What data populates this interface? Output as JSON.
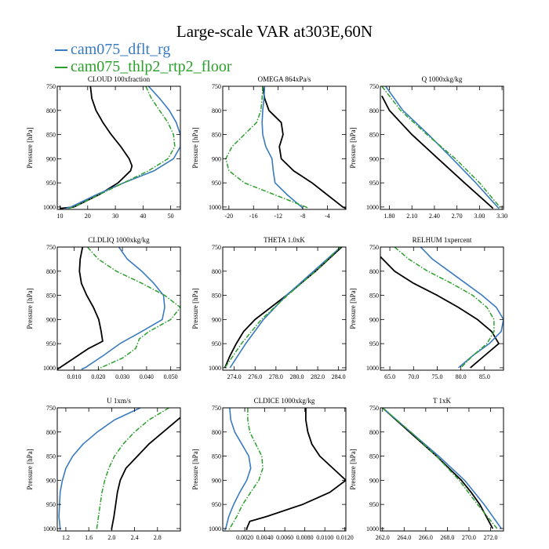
{
  "figure": {
    "title": "Large-scale VAR at303E,60N",
    "legend": [
      {
        "label": "cam075_dflt_rg",
        "color": "#3a7bbf",
        "dash": "solid"
      },
      {
        "label": "cam075_thlp2_rtp2_floor",
        "color": "#2ca02c",
        "dash": "dash-dot"
      }
    ],
    "black_series_color": "#000000"
  },
  "chart_data": [
    {
      "type": "line",
      "title": "CLOUD  100xfraction",
      "ylabel": "Pressure [hPa]",
      "ylim": [
        1005,
        750
      ],
      "xlim": [
        9,
        53.5
      ],
      "xticks": [
        10,
        20,
        30,
        40,
        50
      ],
      "xtick_labels": [
        "10",
        "20",
        "30",
        "40",
        "50"
      ],
      "yticks": [
        750,
        800,
        850,
        900,
        950,
        1000
      ],
      "ytick_labels": [
        "750",
        "800",
        "850",
        "900",
        "950",
        "1000"
      ],
      "series": [
        {
          "color": "#000000",
          "pressure": [
            750,
            775,
            800,
            825,
            850,
            875,
            900,
            915,
            925,
            950,
            975,
            1000,
            1003
          ],
          "values": [
            21,
            21.5,
            23,
            25.5,
            28.5,
            32,
            35,
            36,
            35.5,
            31,
            24,
            15,
            10
          ]
        },
        {
          "color": "#3a7bbf",
          "pressure": [
            750,
            775,
            800,
            825,
            850,
            875,
            900,
            925,
            950,
            975,
            1000,
            1003
          ],
          "values": [
            42,
            46,
            49.5,
            52,
            53.5,
            53.5,
            51,
            44,
            33,
            23,
            14,
            12
          ]
        },
        {
          "color": "#2ca02c",
          "pressure": [
            750,
            775,
            800,
            825,
            850,
            875,
            900,
            925,
            950,
            975,
            1000,
            1003
          ],
          "values": [
            41,
            43,
            46,
            49,
            51,
            51.5,
            49,
            42,
            33,
            24,
            15,
            13
          ]
        }
      ]
    },
    {
      "type": "line",
      "title": "OMEGA  864xPa/s",
      "ylabel": "Pressure [hPa]",
      "ylim": [
        1005,
        750
      ],
      "xlim": [
        -21,
        -1
      ],
      "xticks": [
        -20,
        -16,
        -12,
        -8,
        -4
      ],
      "xtick_labels": [
        "-20",
        "-16",
        "-12",
        "-8",
        "-4"
      ],
      "yticks": [
        750,
        800,
        850,
        900,
        950,
        1000
      ],
      "ytick_labels": [
        "750",
        "800",
        "850",
        "900",
        "950",
        "1000"
      ],
      "series": [
        {
          "color": "#000000",
          "pressure": [
            750,
            775,
            800,
            825,
            850,
            875,
            900,
            925,
            950,
            975,
            1000,
            1003
          ],
          "values": [
            -14.5,
            -14.2,
            -13.5,
            -11.5,
            -11.2,
            -11.8,
            -11.5,
            -9.5,
            -6.5,
            -4,
            -1.5,
            -1
          ]
        },
        {
          "color": "#3a7bbf",
          "pressure": [
            750,
            775,
            800,
            825,
            850,
            875,
            900,
            925,
            950,
            975,
            1000,
            1003
          ],
          "values": [
            -14.2,
            -14.3,
            -14.5,
            -14.6,
            -14.5,
            -14.0,
            -13.0,
            -12.8,
            -12.5,
            -10.5,
            -8.2,
            -8
          ]
        },
        {
          "color": "#2ca02c",
          "pressure": [
            750,
            775,
            800,
            825,
            850,
            875,
            900,
            925,
            950,
            975,
            1000,
            1003
          ],
          "values": [
            -14.5,
            -14.6,
            -14.8,
            -15.5,
            -17.5,
            -19.5,
            -20.5,
            -20.0,
            -17.5,
            -12.5,
            -7.5,
            -7
          ]
        }
      ]
    },
    {
      "type": "line",
      "title": "Q  1000xkg/kg",
      "ylabel": "Pressure [hPa]",
      "ylim": [
        1005,
        750
      ],
      "xlim": [
        1.68,
        3.32
      ],
      "xticks": [
        1.8,
        2.1,
        2.4,
        2.7,
        3.0,
        3.3
      ],
      "xtick_labels": [
        "1.80",
        "2.10",
        "2.40",
        "2.70",
        "3.00",
        "3.30"
      ],
      "yticks": [
        750,
        800,
        850,
        900,
        950,
        1000
      ],
      "ytick_labels": [
        "750",
        "800",
        "850",
        "900",
        "950",
        "1000"
      ],
      "series": [
        {
          "color": "#000000",
          "pressure": [
            770,
            800,
            850,
            900,
            950,
            1000,
            1003
          ],
          "values": [
            1.7,
            1.8,
            2.1,
            2.45,
            2.8,
            3.16,
            3.18
          ]
        },
        {
          "color": "#3a7bbf",
          "pressure": [
            750,
            800,
            850,
            900,
            950,
            1000,
            1003
          ],
          "values": [
            1.75,
            1.98,
            2.32,
            2.64,
            2.95,
            3.24,
            3.26
          ]
        },
        {
          "color": "#2ca02c",
          "pressure": [
            750,
            800,
            850,
            900,
            950,
            1000,
            1003
          ],
          "values": [
            1.7,
            1.95,
            2.3,
            2.68,
            3.0,
            3.27,
            3.29
          ]
        }
      ]
    },
    {
      "type": "line",
      "title": "CLDLIQ  1000xkg/kg",
      "ylabel": "Pressure [hPa]",
      "ylim": [
        1005,
        750
      ],
      "xlim": [
        0.003,
        0.054
      ],
      "xticks": [
        0.01,
        0.02,
        0.03,
        0.04,
        0.05
      ],
      "xtick_labels": [
        "0.010",
        "0.020",
        "0.030",
        "0.040",
        "0.050"
      ],
      "yticks": [
        750,
        800,
        850,
        900,
        950,
        1000
      ],
      "ytick_labels": [
        "750",
        "800",
        "850",
        "900",
        "950",
        "1000"
      ],
      "series": [
        {
          "color": "#000000",
          "pressure": [
            750,
            775,
            800,
            825,
            850,
            875,
            900,
            925,
            945,
            960,
            980,
            1000,
            1003
          ],
          "values": [
            0.0135,
            0.0125,
            0.0122,
            0.013,
            0.0152,
            0.018,
            0.0202,
            0.0212,
            0.0218,
            0.016,
            0.01,
            0.004,
            0.003
          ]
        },
        {
          "color": "#3a7bbf",
          "pressure": [
            750,
            775,
            800,
            825,
            850,
            875,
            900,
            925,
            950,
            975,
            1000,
            1003
          ],
          "values": [
            0.0285,
            0.032,
            0.038,
            0.043,
            0.047,
            0.0475,
            0.0465,
            0.038,
            0.029,
            0.022,
            0.0145,
            0.013
          ]
        },
        {
          "color": "#2ca02c",
          "pressure": [
            750,
            775,
            800,
            825,
            850,
            875,
            900,
            925,
            940,
            960,
            980,
            1000,
            1003
          ],
          "values": [
            0.0155,
            0.02,
            0.0275,
            0.038,
            0.0475,
            0.054,
            0.05,
            0.041,
            0.037,
            0.0355,
            0.03,
            0.021,
            0.02
          ]
        }
      ]
    },
    {
      "type": "line",
      "title": "THETA  1.0xK",
      "ylabel": "Pressure [hPa]",
      "ylim": [
        1005,
        750
      ],
      "xlim": [
        272.9,
        284.7
      ],
      "xticks": [
        274,
        276,
        278,
        280,
        282,
        284
      ],
      "xtick_labels": [
        "274.0",
        "276.0",
        "278.0",
        "280.0",
        "282.0",
        "284.0"
      ],
      "yticks": [
        750,
        800,
        850,
        900,
        950,
        1000
      ],
      "ytick_labels": [
        "750",
        "800",
        "850",
        "900",
        "950",
        "1000"
      ],
      "series": [
        {
          "color": "#000000",
          "pressure": [
            750,
            800,
            850,
            875,
            900,
            925,
            950,
            975,
            1000
          ],
          "values": [
            284.3,
            281.8,
            279.0,
            277.5,
            276.0,
            274.9,
            274.2,
            273.6,
            273.1
          ]
        },
        {
          "color": "#3a7bbf",
          "pressure": [
            750,
            800,
            850,
            900,
            950,
            1000
          ],
          "values": [
            284.2,
            281.6,
            279.0,
            276.8,
            275.1,
            273.6
          ]
        },
        {
          "color": "#2ca02c",
          "pressure": [
            750,
            800,
            850,
            900,
            950,
            1000
          ],
          "values": [
            284.2,
            281.8,
            279.1,
            276.6,
            274.7,
            273.1
          ]
        }
      ]
    },
    {
      "type": "line",
      "title": "RELHUM  1xpercent",
      "ylabel": "Pressure [hPa]",
      "ylim": [
        1005,
        750
      ],
      "xlim": [
        63,
        89
      ],
      "xticks": [
        65,
        70,
        75,
        80,
        85
      ],
      "xtick_labels": [
        "65.0",
        "70.0",
        "75.0",
        "80.0",
        "85.0"
      ],
      "yticks": [
        750,
        800,
        850,
        900,
        950,
        1000
      ],
      "ytick_labels": [
        "750",
        "800",
        "850",
        "900",
        "950",
        "1000"
      ],
      "series": [
        {
          "color": "#000000",
          "pressure": [
            770,
            800,
            825,
            850,
            875,
            900,
            925,
            950,
            975,
            1000
          ],
          "values": [
            63,
            66,
            70,
            75,
            79.5,
            83.5,
            86.5,
            88,
            85,
            82
          ]
        },
        {
          "color": "#3a7bbf",
          "pressure": [
            750,
            775,
            800,
            825,
            850,
            875,
            900,
            925,
            950,
            975,
            1000
          ],
          "values": [
            71.5,
            74,
            77.5,
            81,
            84.5,
            87.5,
            89,
            88.5,
            86,
            82.5,
            79.5
          ]
        },
        {
          "color": "#2ca02c",
          "pressure": [
            750,
            775,
            800,
            825,
            850,
            875,
            900,
            925,
            950,
            975,
            1000
          ],
          "values": [
            66,
            69,
            73,
            78,
            82.5,
            85.5,
            87,
            87,
            85.5,
            82.5,
            80
          ]
        }
      ]
    },
    {
      "type": "line",
      "title": "U  1xm/s",
      "ylabel": "Pressure [hPa]",
      "ylim": [
        1005,
        750
      ],
      "xlim": [
        1.05,
        3.2
      ],
      "xticks": [
        1.2,
        1.6,
        2.0,
        2.4,
        2.8
      ],
      "xtick_labels": [
        "1.2",
        "1.6",
        "2.0",
        "2.4",
        "2.8"
      ],
      "yticks": [
        750,
        800,
        850,
        900,
        950,
        1000
      ],
      "ytick_labels": [
        "750",
        "800",
        "850",
        "900",
        "950",
        "1000"
      ],
      "series": [
        {
          "color": "#000000",
          "pressure": [
            770,
            800,
            825,
            850,
            875,
            900,
            925,
            950,
            975,
            1000,
            1003
          ],
          "values": [
            3.2,
            2.9,
            2.65,
            2.45,
            2.25,
            2.15,
            2.1,
            2.07,
            2.04,
            2.0,
            2.0
          ]
        },
        {
          "color": "#3a7bbf",
          "pressure": [
            750,
            775,
            800,
            825,
            850,
            875,
            900,
            925,
            950,
            975,
            1000,
            1003
          ],
          "values": [
            2.5,
            2.05,
            1.75,
            1.5,
            1.32,
            1.2,
            1.14,
            1.1,
            1.09,
            1.08,
            1.1,
            1.1
          ]
        },
        {
          "color": "#2ca02c",
          "pressure": [
            750,
            775,
            800,
            825,
            850,
            875,
            900,
            925,
            950,
            975,
            1000,
            1003
          ],
          "values": [
            3.0,
            2.65,
            2.4,
            2.2,
            2.05,
            1.95,
            1.88,
            1.83,
            1.8,
            1.77,
            1.74,
            1.74
          ]
        }
      ]
    },
    {
      "type": "line",
      "title": "CLDICE  1000xkg/kg",
      "ylabel": "Pressure [hPa]",
      "ylim": [
        1005,
        750
      ],
      "xlim": [
        -0.0002,
        0.0121
      ],
      "xticks": [
        0.002,
        0.004,
        0.006,
        0.008,
        0.01,
        0.012
      ],
      "xtick_labels": [
        "0.0020",
        "0.0040",
        "0.0060",
        "0.0080",
        "0.0100",
        "0.0120"
      ],
      "yticks": [
        750,
        800,
        850,
        900,
        950,
        1000
      ],
      "ytick_labels": [
        "750",
        "800",
        "850",
        "900",
        "950",
        "1000"
      ],
      "series": [
        {
          "color": "#000000",
          "pressure": [
            750,
            775,
            800,
            825,
            850,
            875,
            900,
            925,
            950,
            975,
            985,
            1000,
            1003
          ],
          "values": [
            0.0081,
            0.0081,
            0.0083,
            0.0087,
            0.0095,
            0.0108,
            0.0121,
            0.0105,
            0.0078,
            0.0042,
            0.0025,
            0.0022,
            0.0022
          ]
        },
        {
          "color": "#3a7bbf",
          "pressure": [
            750,
            775,
            800,
            825,
            850,
            875,
            900,
            925,
            950,
            975,
            1000,
            1003
          ],
          "values": [
            0.0005,
            0.0006,
            0.001,
            0.0017,
            0.0024,
            0.0026,
            0.0022,
            0.0015,
            0.0009,
            0.0004,
            0.0001,
            0
          ]
        },
        {
          "color": "#2ca02c",
          "pressure": [
            750,
            775,
            800,
            825,
            850,
            875,
            900,
            925,
            950,
            975,
            1000,
            1003
          ],
          "values": [
            0.0023,
            0.0023,
            0.0025,
            0.0031,
            0.0037,
            0.0038,
            0.0034,
            0.0026,
            0.0018,
            0.0012,
            0.0005,
            0.0004
          ]
        }
      ]
    },
    {
      "type": "line",
      "title": "T  1xK",
      "ylabel": "Pressure [hPa]",
      "ylim": [
        1005,
        750
      ],
      "xlim": [
        261.8,
        273.2
      ],
      "xticks": [
        262,
        264,
        266,
        268,
        270,
        272
      ],
      "xtick_labels": [
        "262.0",
        "264.0",
        "266.0",
        "268.0",
        "270.0",
        "272.0"
      ],
      "yticks": [
        750,
        800,
        850,
        900,
        950,
        1000
      ],
      "ytick_labels": [
        "750",
        "800",
        "850",
        "900",
        "950",
        "1000"
      ],
      "series": [
        {
          "color": "#000000",
          "pressure": [
            750,
            800,
            850,
            900,
            925,
            950,
            975,
            1000
          ],
          "values": [
            262.0,
            264.5,
            267.0,
            269.3,
            270.2,
            271.0,
            271.6,
            272.2
          ]
        },
        {
          "color": "#3a7bbf",
          "pressure": [
            750,
            800,
            850,
            900,
            950,
            1000
          ],
          "values": [
            262.0,
            264.6,
            267.2,
            269.6,
            271.4,
            273.0
          ]
        },
        {
          "color": "#2ca02c",
          "pressure": [
            750,
            800,
            850,
            900,
            950,
            1000
          ],
          "values": [
            262.0,
            264.6,
            267.0,
            269.1,
            270.8,
            272.6
          ]
        }
      ]
    }
  ]
}
